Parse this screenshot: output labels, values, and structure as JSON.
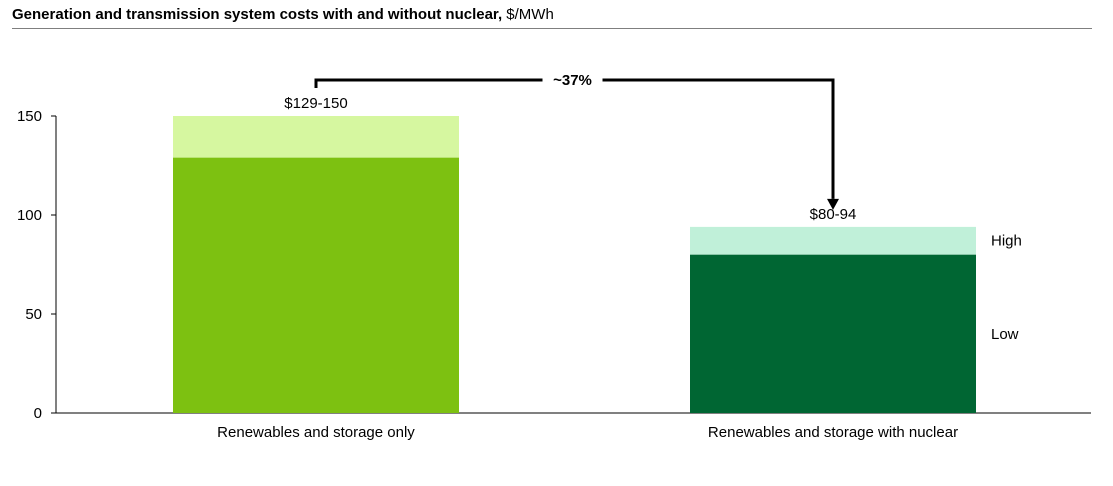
{
  "title": {
    "main": "Generation and transmission system costs with and without nuclear,",
    "unit": "$/MWh"
  },
  "chart_data": {
    "type": "bar",
    "stacked": true,
    "categories": [
      "Renewables and storage only",
      "Renewables and storage with nuclear"
    ],
    "series": [
      {
        "name": "Low",
        "values": [
          129,
          80
        ]
      },
      {
        "name": "High",
        "values": [
          21,
          14
        ]
      }
    ],
    "totals": [
      150,
      94
    ],
    "data_labels": [
      "$129-150",
      "$80-94"
    ],
    "ylim": [
      0,
      150
    ],
    "yticks": [
      0,
      50,
      100,
      150
    ],
    "legend": {
      "placement": "right",
      "entries": [
        "High",
        "Low"
      ]
    },
    "annotation": {
      "text": "~37%",
      "from": "Renewables and storage only",
      "to": "Renewables and storage with nuclear"
    },
    "colors": {
      "low": [
        "#7dc111",
        "#006633"
      ],
      "high": [
        "#d6f7a0",
        "#c0f0d9"
      ],
      "axis": "#000000",
      "rule": "#7f7f7f"
    },
    "grid": false
  }
}
